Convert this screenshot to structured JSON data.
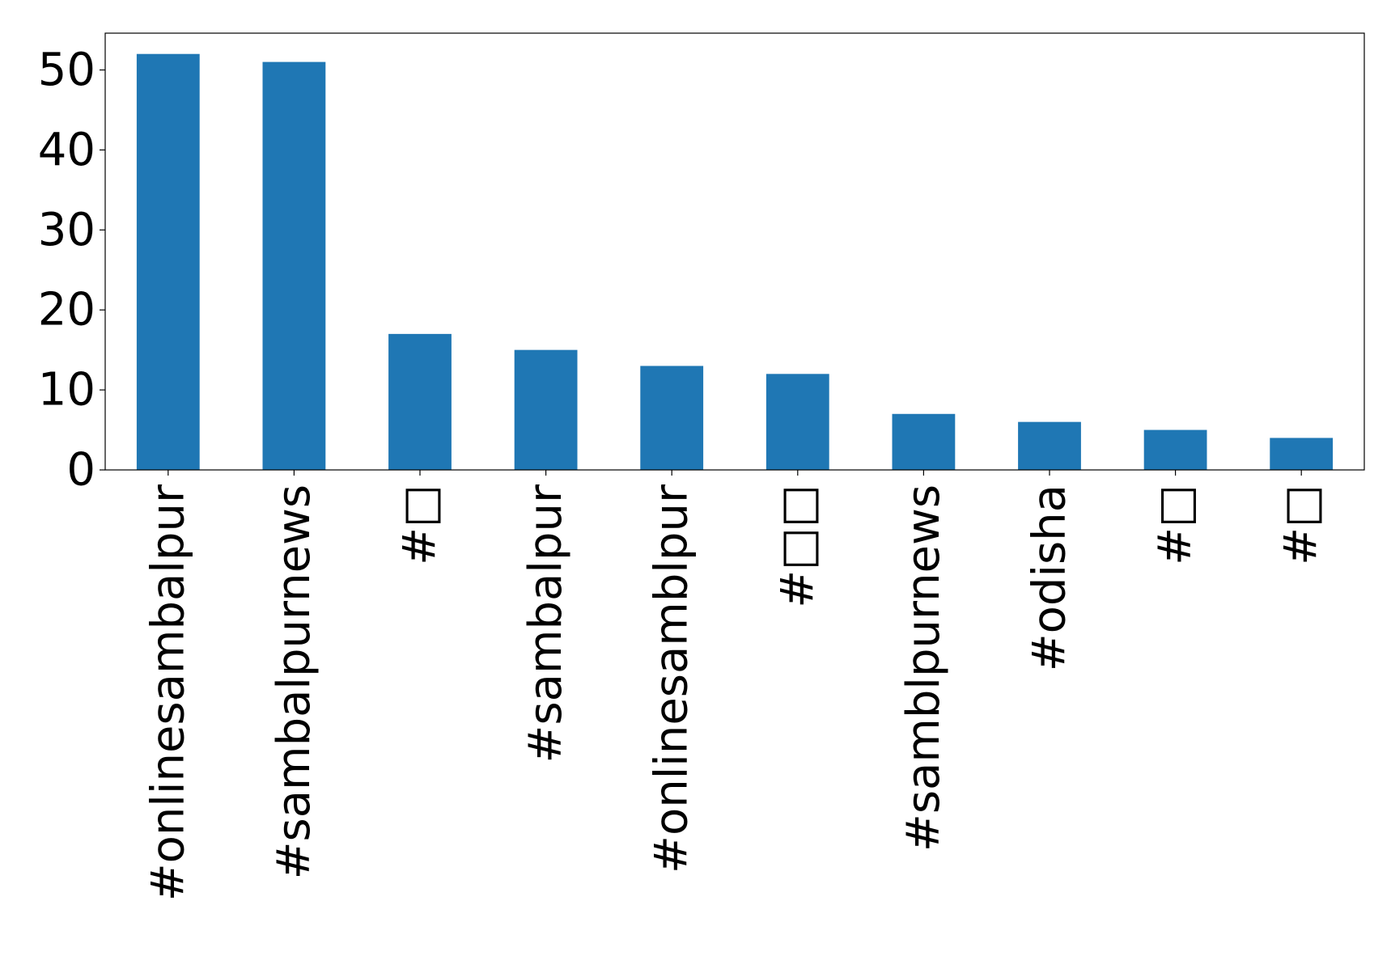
{
  "chart_data": {
    "type": "bar",
    "categories": [
      "#onlinesambalpur",
      "#sambalpurnews",
      "#□",
      "#sambalpur",
      "#onlinesamblpur",
      "#□□",
      "#samblpurnews",
      "#odisha",
      "#□",
      "#□"
    ],
    "values": [
      52,
      51,
      17,
      15,
      13,
      12,
      7,
      6,
      5,
      4
    ],
    "ylim": [
      0,
      54.6
    ],
    "yticks": [
      0,
      10,
      20,
      30,
      40,
      50
    ],
    "title": "",
    "xlabel": "",
    "ylabel": "",
    "grid": false,
    "bar_color": "#1f77b4"
  }
}
